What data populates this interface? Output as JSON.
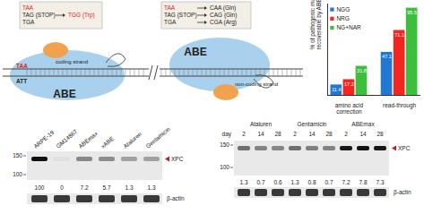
{
  "diagram": {
    "codon_boxes": [
      {
        "from": [
          "TAA",
          "TAG (STOP)",
          "TGA"
        ],
        "to": [
          "TGG (Trp)"
        ]
      },
      {
        "from": [
          "TAA",
          "TAG (STOP)",
          "TGA"
        ],
        "to": [
          "CAA (Gln)",
          "CAG (Gln)",
          "CGA (Arg)"
        ]
      }
    ],
    "strands": [
      {
        "label": "coding strand",
        "top": "TAA",
        "bottom": "ATT",
        "enzyme": "ABE"
      },
      {
        "label": "non-coding strand",
        "enzyme": "ABE"
      }
    ]
  },
  "chart_data": {
    "type": "bar",
    "y_label": "% of pathogenic mutation recoverable by ABEs",
    "categories": [
      "amino acid correction",
      "read-through"
    ],
    "series": [
      {
        "name": "NGG",
        "color": "#1f78d1",
        "values": [
          11.4,
          47.1
        ]
      },
      {
        "name": "NRG",
        "color": "#f2261f",
        "values": [
          17.2,
          71.1
        ]
      },
      {
        "name": "NG+NAR",
        "color": "#3dbf3d",
        "values": [
          31.8,
          95.5
        ]
      }
    ],
    "ylim": [
      0,
      100
    ],
    "tick_labels": "x",
    "data_labels": true,
    "legend": "top-left"
  },
  "blots": [
    {
      "markers": [
        150,
        100
      ],
      "lanes": [
        "ARPE-19",
        "GM14867",
        "ABEmax",
        "xABE",
        "Ataluren",
        "Gentamicin"
      ],
      "bands": [
        "XPC",
        "β-actin"
      ],
      "values": [
        100,
        0,
        7.2,
        5.7,
        1.3,
        1.3
      ]
    },
    {
      "markers": [
        150,
        100
      ],
      "x_title": "day",
      "groups": [
        {
          "name": "Ataluren",
          "days": [
            2,
            14,
            28
          ],
          "values": [
            1.3,
            0.7,
            0.6
          ]
        },
        {
          "name": "Gentamicin",
          "days": [
            2,
            14,
            28
          ],
          "values": [
            1.3,
            0.8,
            0.7
          ]
        },
        {
          "name": "ABEmax",
          "days": [
            2,
            14,
            28
          ],
          "values": [
            7.2,
            7.8,
            7.3
          ]
        }
      ],
      "bands": [
        "XPC",
        "β-actin"
      ]
    }
  ]
}
